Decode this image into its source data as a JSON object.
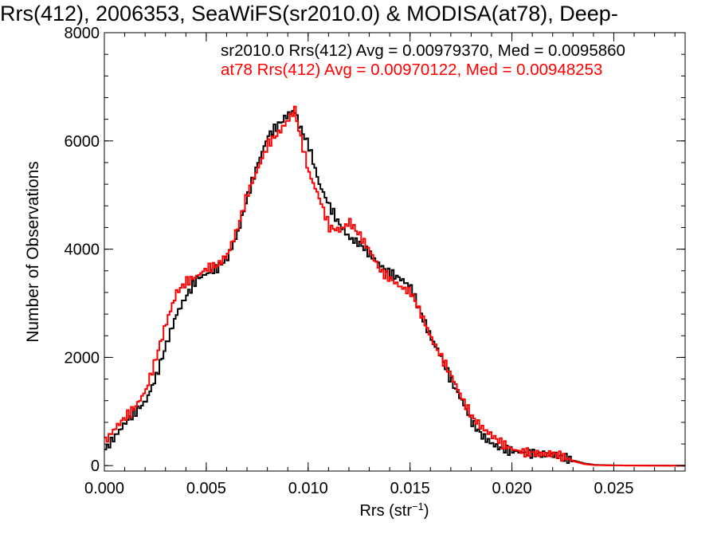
{
  "chart_data": {
    "type": "line",
    "title": "Rrs(412), 2006353, SeaWiFS(sr2010.0) & MODISA(at78), Deep-",
    "xlabel": "Rrs (str",
    "xlabel_sup": "−1",
    "xlabel_close": ")",
    "ylabel": "Number of Observations",
    "xlim": [
      0.0,
      0.0285
    ],
    "ylim": [
      -100,
      8000
    ],
    "xticks": [
      0.0,
      0.005,
      0.01,
      0.015,
      0.02,
      0.025
    ],
    "xtick_labels": [
      "0.000",
      "0.005",
      "0.010",
      "0.015",
      "0.020",
      "0.025"
    ],
    "yticks": [
      0,
      2000,
      4000,
      6000,
      8000
    ],
    "ytick_labels": [
      "0",
      "2000",
      "4000",
      "6000",
      "8000"
    ],
    "grid": false,
    "legend": "top-right",
    "annotations": [
      "sr2010.0 Rrs(412) Avg = 0.00979370, Med = 0.0095860",
      "at78 Rrs(412) Avg = 0.00970122, Med = 0.00948253"
    ],
    "series": [
      {
        "color": "#000000",
        "x": [
          0.0,
          0.0005,
          0.001,
          0.0015,
          0.002,
          0.0025,
          0.003,
          0.0035,
          0.004,
          0.0045,
          0.005,
          0.0055,
          0.006,
          0.0065,
          0.007,
          0.0075,
          0.008,
          0.0085,
          0.009,
          0.0093,
          0.0095,
          0.01,
          0.0105,
          0.011,
          0.0115,
          0.012,
          0.0125,
          0.013,
          0.0135,
          0.014,
          0.0145,
          0.015,
          0.0155,
          0.016,
          0.0165,
          0.017,
          0.0175,
          0.018,
          0.0185,
          0.019,
          0.0195,
          0.02,
          0.0205,
          0.021,
          0.0215,
          0.022,
          0.0225,
          0.023,
          0.0235,
          0.024,
          0.025,
          0.026,
          0.027,
          0.028
        ],
        "y": [
          300,
          550,
          800,
          1000,
          1200,
          1650,
          2250,
          2800,
          3150,
          3450,
          3550,
          3650,
          3850,
          4300,
          5000,
          5600,
          6100,
          6300,
          6500,
          6550,
          6300,
          5900,
          5200,
          4800,
          4450,
          4200,
          4100,
          3900,
          3700,
          3550,
          3450,
          3300,
          2800,
          2350,
          2000,
          1550,
          1200,
          800,
          550,
          400,
          300,
          270,
          240,
          220,
          210,
          200,
          150,
          90,
          40,
          15,
          5,
          2,
          1,
          0
        ]
      },
      {
        "color": "#ff0000",
        "x": [
          0.0,
          0.0005,
          0.001,
          0.0015,
          0.002,
          0.0025,
          0.003,
          0.0035,
          0.004,
          0.0045,
          0.005,
          0.0055,
          0.006,
          0.0065,
          0.007,
          0.0075,
          0.008,
          0.0085,
          0.009,
          0.0093,
          0.0095,
          0.01,
          0.0105,
          0.011,
          0.0115,
          0.012,
          0.0125,
          0.013,
          0.0135,
          0.014,
          0.0145,
          0.015,
          0.0155,
          0.016,
          0.0165,
          0.017,
          0.0175,
          0.018,
          0.0185,
          0.019,
          0.0195,
          0.02,
          0.0205,
          0.021,
          0.0215,
          0.022,
          0.0225,
          0.023,
          0.0235,
          0.024,
          0.025,
          0.026,
          0.027,
          0.028
        ],
        "y": [
          450,
          700,
          900,
          1100,
          1400,
          2000,
          2650,
          3200,
          3400,
          3500,
          3650,
          3700,
          3900,
          4400,
          5050,
          5500,
          5950,
          6150,
          6400,
          6580,
          6200,
          5400,
          4950,
          4400,
          4350,
          4500,
          4250,
          3950,
          3600,
          3450,
          3300,
          3200,
          2800,
          2350,
          2000,
          1650,
          1250,
          900,
          700,
          550,
          400,
          300,
          250,
          230,
          210,
          220,
          160,
          80,
          30,
          10,
          3,
          1,
          0,
          0
        ]
      }
    ]
  }
}
